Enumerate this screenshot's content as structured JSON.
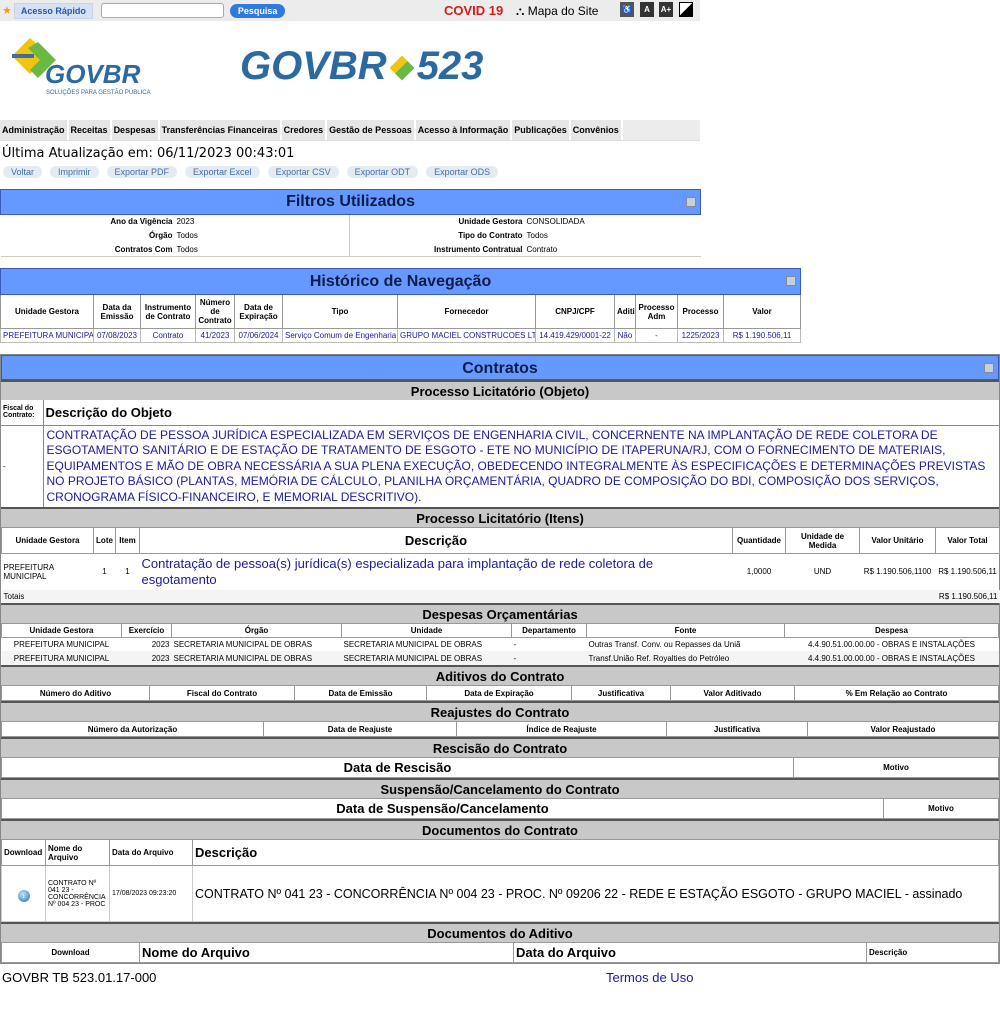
{
  "topbar": {
    "quick_access": "Acesso Rápido",
    "search_placeholder": "",
    "search_button": "Pesquisa",
    "covid": "COVID 19",
    "site_map": "Mapa do Site",
    "font_a": "A",
    "font_a_plus": "A+"
  },
  "logo": {
    "brand": "GOVBR",
    "tagline": "SOLUÇÕES PARA GESTÃO PÚBLICA",
    "product": "GOVBR",
    "product_num": "523"
  },
  "nav": [
    "Administração",
    "Receitas",
    "Despesas",
    "Transferências Financeiras",
    "Credores",
    "Gestão de Pessoas",
    "Acesso à Informação",
    "Publicações",
    "Convênios"
  ],
  "last_update": "Última Atualização em: 06/11/2023 00:43:01",
  "actions": [
    "Voltar",
    "Imprimir",
    "Exportar PDF",
    "Exportar Excel",
    "Exportar CSV",
    "Exportar ODT",
    "Exportar ODS"
  ],
  "filters": {
    "title": "Filtros Utilizados",
    "rows": [
      {
        "l1": "Ano da Vigência",
        "v1": "2023",
        "l2": "Unidade Gestora",
        "v2": "CONSOLIDADA"
      },
      {
        "l1": "Órgão",
        "v1": "Todos",
        "l2": "Tipo do Contrato",
        "v2": "Todos"
      },
      {
        "l1": "Contratos Com",
        "v1": "Todos",
        "l2": "Instrumento Contratual",
        "v2": "Contrato"
      }
    ]
  },
  "history": {
    "title": "Histórico de Navegação",
    "headers": [
      "Unidade Gestora",
      "Data da Emissão",
      "Instrumento de Contrato",
      "Número de Contrato",
      "Data de Expiração",
      "Tipo",
      "Fornecedor",
      "CNPJ/CPF",
      "Aditivo",
      "Processo Adm",
      "Processo",
      "Valor"
    ],
    "row": [
      "PREFEITURA MUNICIPAL",
      "07/08/2023",
      "Contrato",
      "41/2023",
      "07/06/2024",
      "Serviço Comum de Engenharia",
      "GRUPO MACIEL CONSTRUCOES LTDA",
      "14.419.429/0001-22",
      "Não",
      "-",
      "1225/2023",
      "R$ 1.190.506,11"
    ]
  },
  "contracts": {
    "title": "Contratos",
    "objeto": {
      "title": "Processo Licitatório (Objeto)",
      "fiscal_label": "Fiscal do Contrato:",
      "desc_label": "Descrição do Objeto",
      "fiscal": "-",
      "desc": "CONTRATAÇÃO DE PESSOA JURÍDICA ESPECIALIZADA EM SERVIÇOS DE ENGENHARIA CIVIL, CONCERNENTE NA IMPLANTAÇÃO DE REDE COLETORA DE ESGOTAMENTO SANITÁRIO E DE ESTAÇÃO DE TRATAMENTO DE ESGOTO - ETE NO MUNICÍPIO DE ITAPERUNA/RJ, COM O FORNECIMENTO DE MATERIAIS, EQUIPAMENTOS E MÃO DE OBRA NECESSÁRIA A SUA PLENA EXECUÇÃO, OBEDECENDO INTEGRALMENTE ÀS ESPECIFICAÇÕES E DETERMINAÇÕES PREVISTAS NO PROJETO BÁSICO (PLANTAS, MEMÓRIA DE CÁLCULO, PLANILHA ORÇAMENTÁRIA, QUADRO DE COMPOSIÇÃO DO BDI, COMPOSIÇÃO DOS SERVIÇOS, CRONOGRAMA FÍSICO-FINANCEIRO, E MEMORIAL DESCRITIVO)."
    },
    "itens": {
      "title": "Processo Licitatório (Itens)",
      "headers": [
        "Unidade Gestora",
        "Lote",
        "Item",
        "Descrição",
        "Quantidade",
        "Unidade de Medida",
        "Valor Unitário",
        "Valor Total"
      ],
      "row": [
        "PREFEITURA MUNICIPAL",
        "1",
        "1",
        "Contratação de pessoa(s) jurídica(s) especializada para implantação de rede coletora de esgotamento",
        "1,0000",
        "UND",
        "R$ 1.190.506,1100",
        "R$ 1.190.506,11"
      ],
      "totals_label": "Totais",
      "totals_value": "R$ 1.190.506,11"
    },
    "despesas": {
      "title": "Despesas Orçamentárias",
      "headers": [
        "Unidade Gestora",
        "Exercício",
        "Órgão",
        "Unidade",
        "Departamento",
        "Fonte",
        "Despesa"
      ],
      "rows": [
        [
          "PREFEITURA MUNICIPAL",
          "2023",
          "SECRETARIA MUNICIPAL DE OBRAS",
          "SECRETARIA MUNICIPAL DE OBRAS",
          "-",
          "Outras Transf. Conv. ou Repasses da Uniã",
          "4.4.90.51.00.00.00 - OBRAS E INSTALAÇÕES"
        ],
        [
          "PREFEITURA MUNICIPAL",
          "2023",
          "SECRETARIA MUNICIPAL DE OBRAS",
          "SECRETARIA MUNICIPAL DE OBRAS",
          "-",
          "Transf.União Ref. Royalties do Petróleo",
          "4.4.90.51.00.00.00 - OBRAS E INSTALAÇÕES"
        ]
      ]
    },
    "aditivos": {
      "title": "Aditivos do Contrato",
      "headers": [
        "Número do Aditivo",
        "Fiscal do Contrato",
        "Data de Emissão",
        "Data de Expiração",
        "Justificativa",
        "Valor Aditivado",
        "% Em Relação ao Contrato"
      ]
    },
    "reajustes": {
      "title": "Reajustes do Contrato",
      "headers": [
        "Número da Autorização",
        "Data de Reajuste",
        "Índice de Reajuste",
        "Justificativa",
        "Valor Reajustado"
      ]
    },
    "rescisao": {
      "title": "Rescisão do Contrato",
      "headers": [
        "Data de Rescisão",
        "Motivo"
      ]
    },
    "suspensao": {
      "title": "Suspensão/Cancelamento do Contrato",
      "headers": [
        "Data de Suspensão/Cancelamento",
        "Motivo"
      ]
    },
    "documentos": {
      "title": "Documentos do Contrato",
      "headers": [
        "Download",
        "Nome do Arquivo",
        "Data do Arquivo",
        "Descrição"
      ],
      "row": {
        "name": "CONTRATO Nº 041 23 - CONCORRÊNCIA Nº 004 23 - PROC",
        "date": "17/08/2023 09:23:20",
        "desc": "CONTRATO Nº 041 23 - CONCORRÊNCIA Nº 004 23 - PROC. Nº 09206 22 - REDE E ESTAÇÃO ESGOTO - GRUPO MACIEL - assinado"
      }
    },
    "doc_aditivo": {
      "title": "Documentos do Aditivo",
      "headers": [
        "Download",
        "Nome do Arquivo",
        "Data do Arquivo",
        "Descrição"
      ]
    }
  },
  "footer": {
    "version": "GOVBR TB 523.01.17-000",
    "terms": "Termos de Uso"
  },
  "colors": {
    "header_blue": "#6699ff",
    "section_gray": "#c8c8c8",
    "link": "#1a1a9c",
    "covid": "#d21d1d"
  }
}
